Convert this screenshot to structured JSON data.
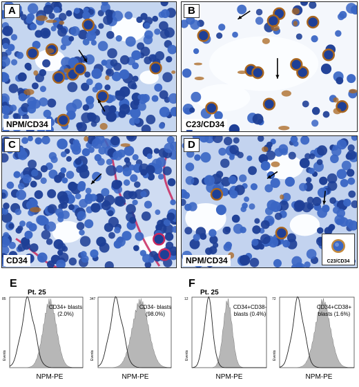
{
  "panels": {
    "A": {
      "letter": "A",
      "stain": "NPM/CD34"
    },
    "B": {
      "letter": "B",
      "stain": "C23/CD34"
    },
    "C": {
      "letter": "C",
      "stain": "CD34"
    },
    "D": {
      "letter": "D",
      "stain": "NPM/CD34",
      "inset": "C23/CD34"
    }
  },
  "flow": {
    "E": {
      "letter": "E",
      "patient": "Pt. 25",
      "histograms": [
        {
          "annotation_line1": "CD34+ blasts",
          "annotation_line2": "(2.0%)",
          "ymax": "85",
          "ylabel": "Events",
          "xlabel": "NPM-PE"
        },
        {
          "annotation_line1": "CD34- blasts",
          "annotation_line2": "(98.0%)",
          "ymax": "347",
          "ylabel": "Events",
          "xlabel": "NPM-PE"
        }
      ]
    },
    "F": {
      "letter": "F",
      "patient": "Pt. 25",
      "histograms": [
        {
          "annotation_line1": "CD34+CD38-",
          "annotation_line2": "blasts (0.4%)",
          "ymax": "12",
          "ylabel": "Events",
          "xlabel": "NPM-PE"
        },
        {
          "annotation_line1": "CD34+CD38+",
          "annotation_line2": "blasts (1.6%)",
          "ymax": "72",
          "ylabel": "Events",
          "xlabel": "NPM-PE"
        }
      ]
    }
  },
  "colors": {
    "nucleus": "#3a66c4",
    "nucleus_dark": "#1e3f96",
    "background_tissue": "#d7e2f5",
    "dab_brown": "#a9661f",
    "red_stain": "#c8285e",
    "histogram_fill": "#b7b7b7"
  }
}
